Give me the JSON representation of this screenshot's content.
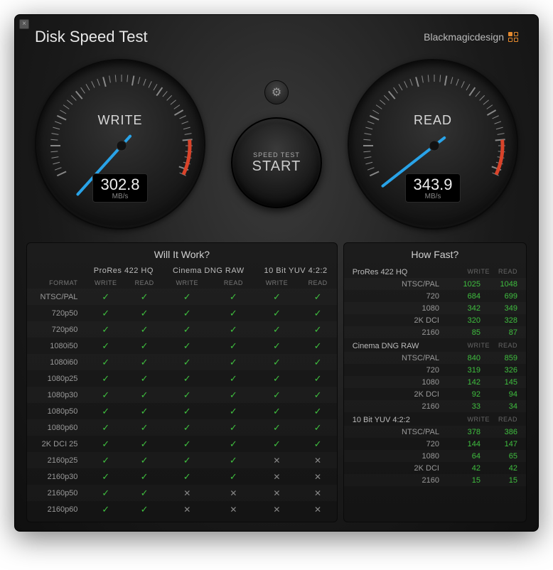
{
  "window": {
    "title": "Disk Speed Test",
    "brand": "Blackmagicdesign"
  },
  "gauges": {
    "write": {
      "label": "WRITE",
      "value": "302.8",
      "unit": "MB/s",
      "needle_angle": -48
    },
    "read": {
      "label": "READ",
      "value": "343.9",
      "unit": "MB/s",
      "needle_angle": -38
    },
    "tick_color": "#888",
    "redzone_color": "#d9432a",
    "needle_color": "#29a3e8",
    "face_bg": "#1a1a1a"
  },
  "start": {
    "line1": "SPEED TEST",
    "line2": "START"
  },
  "will_it_work": {
    "title": "Will It Work?",
    "format_header": "FORMAT",
    "groups": [
      "ProRes 422 HQ",
      "Cinema DNG RAW",
      "10 Bit YUV 4:2:2"
    ],
    "sub": [
      "WRITE",
      "READ"
    ],
    "rows": [
      {
        "f": "NTSC/PAL",
        "v": [
          1,
          1,
          1,
          1,
          1,
          1
        ]
      },
      {
        "f": "720p50",
        "v": [
          1,
          1,
          1,
          1,
          1,
          1
        ]
      },
      {
        "f": "720p60",
        "v": [
          1,
          1,
          1,
          1,
          1,
          1
        ]
      },
      {
        "f": "1080i50",
        "v": [
          1,
          1,
          1,
          1,
          1,
          1
        ]
      },
      {
        "f": "1080i60",
        "v": [
          1,
          1,
          1,
          1,
          1,
          1
        ]
      },
      {
        "f": "1080p25",
        "v": [
          1,
          1,
          1,
          1,
          1,
          1
        ]
      },
      {
        "f": "1080p30",
        "v": [
          1,
          1,
          1,
          1,
          1,
          1
        ]
      },
      {
        "f": "1080p50",
        "v": [
          1,
          1,
          1,
          1,
          1,
          1
        ]
      },
      {
        "f": "1080p60",
        "v": [
          1,
          1,
          1,
          1,
          1,
          1
        ]
      },
      {
        "f": "2K DCI 25",
        "v": [
          1,
          1,
          1,
          1,
          1,
          1
        ]
      },
      {
        "f": "2160p25",
        "v": [
          1,
          1,
          1,
          1,
          0,
          0
        ]
      },
      {
        "f": "2160p30",
        "v": [
          1,
          1,
          1,
          1,
          0,
          0
        ]
      },
      {
        "f": "2160p50",
        "v": [
          1,
          1,
          0,
          0,
          0,
          0
        ]
      },
      {
        "f": "2160p60",
        "v": [
          1,
          1,
          0,
          0,
          0,
          0
        ]
      }
    ],
    "check_color": "#3fbf3f",
    "x_color": "#888"
  },
  "how_fast": {
    "title": "How Fast?",
    "sub": [
      "WRITE",
      "READ"
    ],
    "sections": [
      {
        "name": "ProRes 422 HQ",
        "rows": [
          {
            "l": "NTSC/PAL",
            "w": "1025",
            "r": "1048"
          },
          {
            "l": "720",
            "w": "684",
            "r": "699"
          },
          {
            "l": "1080",
            "w": "342",
            "r": "349"
          },
          {
            "l": "2K DCI",
            "w": "320",
            "r": "328"
          },
          {
            "l": "2160",
            "w": "85",
            "r": "87"
          }
        ]
      },
      {
        "name": "Cinema DNG RAW",
        "rows": [
          {
            "l": "NTSC/PAL",
            "w": "840",
            "r": "859"
          },
          {
            "l": "720",
            "w": "319",
            "r": "326"
          },
          {
            "l": "1080",
            "w": "142",
            "r": "145"
          },
          {
            "l": "2K DCI",
            "w": "92",
            "r": "94"
          },
          {
            "l": "2160",
            "w": "33",
            "r": "34"
          }
        ]
      },
      {
        "name": "10 Bit YUV 4:2:2",
        "rows": [
          {
            "l": "NTSC/PAL",
            "w": "378",
            "r": "386"
          },
          {
            "l": "720",
            "w": "144",
            "r": "147"
          },
          {
            "l": "1080",
            "w": "64",
            "r": "65"
          },
          {
            "l": "2K DCI",
            "w": "42",
            "r": "42"
          },
          {
            "l": "2160",
            "w": "15",
            "r": "15"
          }
        ]
      }
    ],
    "value_color": "#3fbf3f"
  }
}
